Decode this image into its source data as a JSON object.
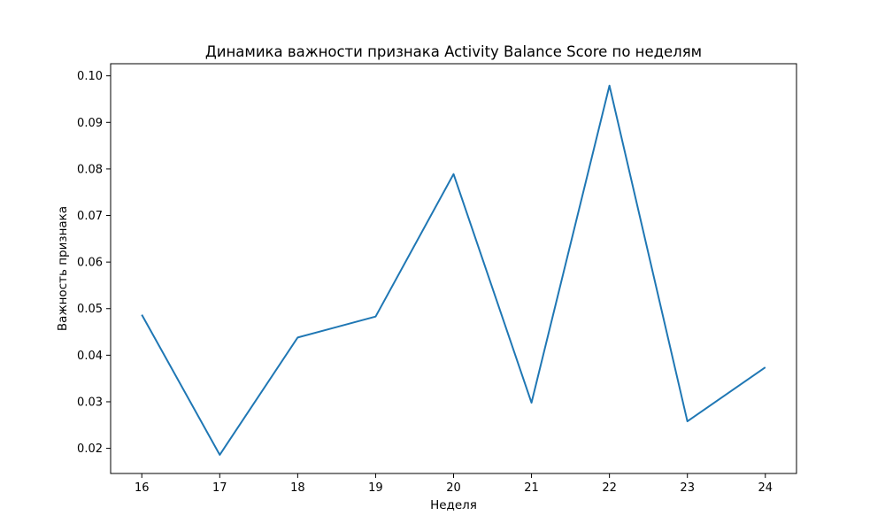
{
  "chart_data": {
    "type": "line",
    "title": "Динамика важности признака Activity Balance Score по неделям",
    "xlabel": "Неделя",
    "ylabel": "Важность признака",
    "x": [
      16,
      17,
      18,
      19,
      20,
      21,
      22,
      23,
      24
    ],
    "x_tick_labels": [
      "16",
      "17",
      "18",
      "19",
      "20",
      "21",
      "22",
      "23",
      "24"
    ],
    "y_ticks": [
      0.02,
      0.03,
      0.04,
      0.05,
      0.06,
      0.07,
      0.08,
      0.09,
      0.1
    ],
    "y_tick_labels": [
      "0.02",
      "0.03",
      "0.04",
      "0.05",
      "0.06",
      "0.07",
      "0.08",
      "0.09",
      "0.10"
    ],
    "xlim": [
      15.6,
      24.4
    ],
    "ylim": [
      0.0146,
      0.1026
    ],
    "grid": false,
    "series": [
      {
        "values": [
          0.0487,
          0.0186,
          0.0438,
          0.0483,
          0.0789,
          0.0298,
          0.0979,
          0.0258,
          0.0374
        ],
        "color": "#1f77b4"
      }
    ]
  }
}
